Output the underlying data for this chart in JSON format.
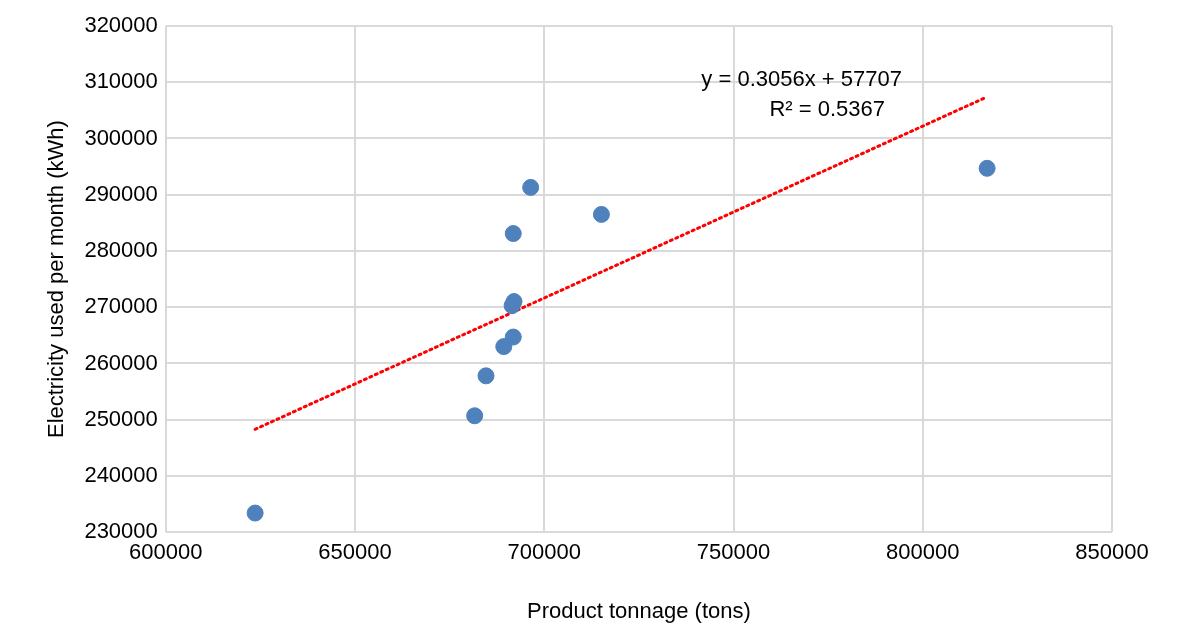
{
  "chart_data": {
    "type": "scatter",
    "xlabel": "Product tonnage (tons)",
    "ylabel": "Electricity used per month (kWh)",
    "xlim": [
      600000,
      850000
    ],
    "xticks": [
      600000,
      650000,
      700000,
      750000,
      800000,
      850000
    ],
    "ylim": [
      230000,
      320000
    ],
    "yticks": [
      230000,
      240000,
      250000,
      260000,
      270000,
      280000,
      290000,
      300000,
      310000,
      320000
    ],
    "grid": true,
    "legend": false,
    "series": [
      {
        "marker": "circle",
        "color": "#4f81bd",
        "x": [
          623600,
          681600,
          684600,
          689300,
          691800,
          691500,
          692000,
          691800,
          696400,
          715100,
          817000
        ],
        "values": [
          233400,
          250700,
          257800,
          263000,
          264700,
          270300,
          271000,
          283100,
          291300,
          286500,
          294700
        ]
      },
      {
        "type": "line",
        "color": "#ff0000",
        "line_style": "dotted",
        "x": [
          623600,
          817000
        ],
        "values": [
          248300,
          307400
        ]
      }
    ],
    "annotations": [
      "y = 0.3056x + 57707",
      "R² = 0.5367"
    ]
  }
}
